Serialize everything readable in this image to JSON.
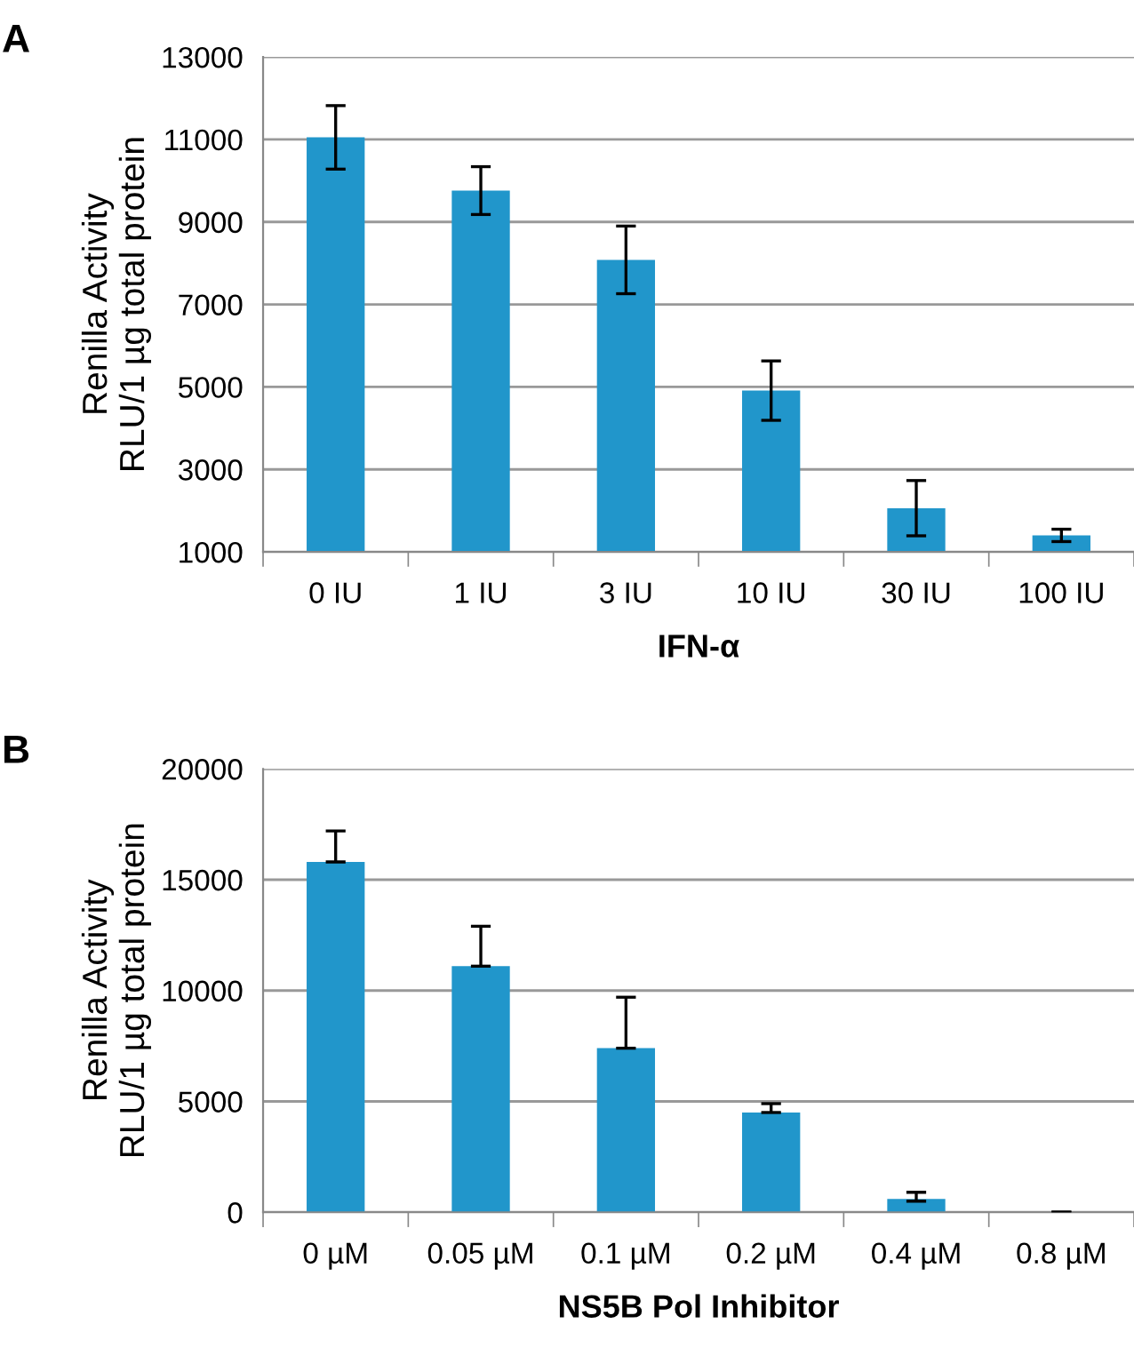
{
  "chart_data": [
    {
      "type": "bar",
      "title": "A",
      "xlabel": "IFN-α",
      "ylabel": "Renilla Activity\nRLU/1 µg total protein",
      "categories": [
        "0 IU",
        "1 IU",
        "3 IU",
        "10 IU",
        "30 IU",
        "100 IU"
      ],
      "values": [
        11050,
        9760,
        8080,
        4910,
        2060,
        1400
      ],
      "errors": [
        770,
        580,
        820,
        720,
        670,
        150
      ],
      "color": "#2196cb",
      "ylim": [
        1000,
        13000
      ],
      "yticks": [
        1000,
        3000,
        5000,
        7000,
        9000,
        11000,
        13000
      ],
      "grid": "y"
    },
    {
      "type": "bar",
      "title": "B",
      "xlabel": "NS5B Pol Inhibitor",
      "ylabel": "Renilla Activity\nRLU/1 µg total protein",
      "categories": [
        "0 µM",
        "0.05 µM",
        "0.1 µM",
        "0.2 µM",
        "0.4 µM",
        "0.8 µM"
      ],
      "values": [
        15800,
        11100,
        7400,
        4500,
        600,
        0
      ],
      "errors": [
        [
          15800,
          17200
        ],
        [
          11100,
          12900
        ],
        [
          7400,
          9700
        ],
        [
          4500,
          4900
        ],
        [
          500,
          900
        ],
        null
      ],
      "color": "#2196cb",
      "ylim": [
        0,
        20000
      ],
      "yticks": [
        0,
        5000,
        10000,
        15000,
        20000
      ],
      "grid": "y"
    }
  ]
}
